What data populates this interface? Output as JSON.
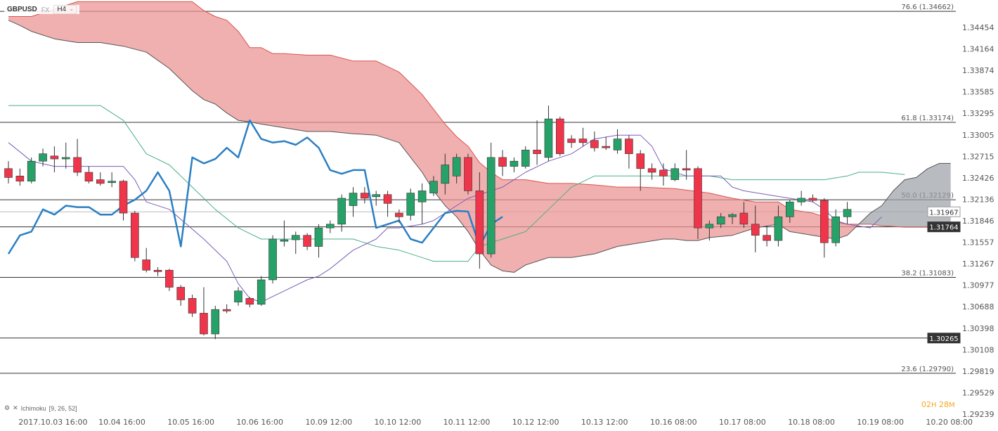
{
  "header": {
    "symbol": "GBPUSD",
    "market": "FX",
    "timeframe": "H4",
    "timeframe_icon": "chevron-down-icon"
  },
  "indicator": {
    "icon": "settings-icon",
    "name": "Ichimoku",
    "params": "[9, 26, 52]"
  },
  "countdown": {
    "hours": "02",
    "hour_unit": "H",
    "minutes": "28",
    "minute_unit": "M"
  },
  "chart_data": {
    "type": "candlestick",
    "ylim": [
      1.29239,
      1.34662
    ],
    "y_ticks": [
      "1.34454",
      "1.34164",
      "1.33874",
      "1.33585",
      "1.33295",
      "1.33005",
      "1.32715",
      "1.32426",
      "1.32136",
      "1.31846",
      "1.31557",
      "1.31267",
      "1.30977",
      "1.30688",
      "1.30398",
      "1.30108",
      "1.29819",
      "1.29529",
      "1.29239"
    ],
    "x_ticks": [
      {
        "label": "2017.10.03  16:00",
        "index": 4
      },
      {
        "label": "10.04  16:00",
        "index": 10
      },
      {
        "label": "10.05  16:00",
        "index": 16
      },
      {
        "label": "10.06  16:00",
        "index": 22
      },
      {
        "label": "10.09  12:00",
        "index": 28
      },
      {
        "label": "10.10  12:00",
        "index": 34
      },
      {
        "label": "10.11  12:00",
        "index": 40
      },
      {
        "label": "10.12  12:00",
        "index": 46
      },
      {
        "label": "10.13  12:00",
        "index": 52
      },
      {
        "label": "10.16  08:00",
        "index": 58
      },
      {
        "label": "10.17  08:00",
        "index": 64
      },
      {
        "label": "10.18  08:00",
        "index": 70
      },
      {
        "label": "10.19  08:00",
        "index": 76
      },
      {
        "label": "10.20  08:00",
        "index": 82
      }
    ],
    "candles": [
      [
        1.3255,
        1.3265,
        1.3235,
        1.3243
      ],
      [
        1.3245,
        1.3255,
        1.3232,
        1.3238
      ],
      [
        1.3238,
        1.327,
        1.3235,
        1.3265
      ],
      [
        1.3265,
        1.3282,
        1.3258,
        1.3275
      ],
      [
        1.3272,
        1.3285,
        1.325,
        1.3268
      ],
      [
        1.3268,
        1.329,
        1.3255,
        1.327
      ],
      [
        1.327,
        1.3295,
        1.3245,
        1.325
      ],
      [
        1.325,
        1.3258,
        1.3235,
        1.3238
      ],
      [
        1.324,
        1.325,
        1.3232,
        1.3235
      ],
      [
        1.3236,
        1.325,
        1.323,
        1.3238
      ],
      [
        1.3238,
        1.324,
        1.3185,
        1.3195
      ],
      [
        1.3195,
        1.3198,
        1.313,
        1.3135
      ],
      [
        1.3132,
        1.3148,
        1.3115,
        1.3118
      ],
      [
        1.3118,
        1.3122,
        1.311,
        1.3116
      ],
      [
        1.3118,
        1.312,
        1.309,
        1.3095
      ],
      [
        1.3095,
        1.3098,
        1.307,
        1.3078
      ],
      [
        1.308,
        1.3085,
        1.3055,
        1.306
      ],
      [
        1.306,
        1.3095,
        1.303,
        1.3032
      ],
      [
        1.3032,
        1.307,
        1.3025,
        1.3065
      ],
      [
        1.3065,
        1.3072,
        1.306,
        1.3063
      ],
      [
        1.3075,
        1.3095,
        1.307,
        1.309
      ],
      [
        1.308,
        1.3082,
        1.3068,
        1.3072
      ],
      [
        1.3072,
        1.311,
        1.307,
        1.3105
      ],
      [
        1.3105,
        1.3165,
        1.31,
        1.316
      ],
      [
        1.3157,
        1.3185,
        1.315,
        1.3159
      ],
      [
        1.3159,
        1.317,
        1.314,
        1.3165
      ],
      [
        1.3165,
        1.3168,
        1.3145,
        1.315
      ],
      [
        1.315,
        1.318,
        1.3135,
        1.3175
      ],
      [
        1.3175,
        1.3185,
        1.3168,
        1.318
      ],
      [
        1.318,
        1.322,
        1.317,
        1.3215
      ],
      [
        1.3205,
        1.323,
        1.319,
        1.3222
      ],
      [
        1.3222,
        1.323,
        1.3208,
        1.3215
      ],
      [
        1.3217,
        1.3225,
        1.3205,
        1.322
      ],
      [
        1.322,
        1.3225,
        1.319,
        1.3208
      ],
      [
        1.3195,
        1.32,
        1.3182,
        1.319
      ],
      [
        1.3192,
        1.3228,
        1.3185,
        1.3222
      ],
      [
        1.321,
        1.3235,
        1.318,
        1.3225
      ],
      [
        1.3222,
        1.3245,
        1.3218,
        1.3238
      ],
      [
        1.3235,
        1.3275,
        1.322,
        1.326
      ],
      [
        1.3245,
        1.3275,
        1.3235,
        1.327
      ],
      [
        1.327,
        1.3275,
        1.322,
        1.3225
      ],
      [
        1.3225,
        1.325,
        1.312,
        1.314
      ],
      [
        1.314,
        1.329,
        1.3135,
        1.327
      ],
      [
        1.327,
        1.328,
        1.3245,
        1.3258
      ],
      [
        1.3258,
        1.327,
        1.325,
        1.3265
      ],
      [
        1.3258,
        1.3285,
        1.3255,
        1.328
      ],
      [
        1.328,
        1.332,
        1.326,
        1.3275
      ],
      [
        1.327,
        1.334,
        1.3265,
        1.3322
      ],
      [
        1.3322,
        1.3325,
        1.3272,
        1.3275
      ],
      [
        1.3295,
        1.33,
        1.3283,
        1.329
      ],
      [
        1.3295,
        1.331,
        1.3285,
        1.329
      ],
      [
        1.3293,
        1.3305,
        1.3278,
        1.3283
      ],
      [
        1.3285,
        1.3298,
        1.328,
        1.3283
      ],
      [
        1.328,
        1.3308,
        1.3275,
        1.3295
      ],
      [
        1.3295,
        1.33,
        1.3255,
        1.3275
      ],
      [
        1.3275,
        1.328,
        1.3225,
        1.3255
      ],
      [
        1.3255,
        1.3262,
        1.324,
        1.325
      ],
      [
        1.3253,
        1.3262,
        1.3232,
        1.3245
      ],
      [
        1.324,
        1.3262,
        1.3238,
        1.3255
      ],
      [
        1.3255,
        1.328,
        1.324,
        1.3253
      ],
      [
        1.3255,
        1.3258,
        1.316,
        1.3175
      ],
      [
        1.3175,
        1.3185,
        1.3158,
        1.318
      ],
      [
        1.318,
        1.3195,
        1.3175,
        1.319
      ],
      [
        1.319,
        1.3195,
        1.318,
        1.3193
      ],
      [
        1.3195,
        1.321,
        1.3175,
        1.318
      ],
      [
        1.318,
        1.3205,
        1.3142,
        1.3165
      ],
      [
        1.3165,
        1.3178,
        1.315,
        1.3158
      ],
      [
        1.3158,
        1.3205,
        1.315,
        1.319
      ],
      [
        1.319,
        1.3213,
        1.3182,
        1.321
      ],
      [
        1.321,
        1.3225,
        1.3205,
        1.3215
      ],
      [
        1.3215,
        1.322,
        1.321,
        1.3212
      ],
      [
        1.3212,
        1.3215,
        1.3135,
        1.3155
      ],
      [
        1.3155,
        1.32,
        1.315,
        1.319
      ],
      [
        1.319,
        1.321,
        1.318,
        1.32
      ]
    ],
    "tenkan": [
      [
        0,
        1.329
      ],
      [
        2,
        1.3265
      ],
      [
        4,
        1.3258
      ],
      [
        8,
        1.3258
      ],
      [
        10,
        1.3258
      ],
      [
        11,
        1.324
      ],
      [
        12,
        1.321
      ],
      [
        14,
        1.32
      ],
      [
        17,
        1.316
      ],
      [
        19,
        1.313
      ],
      [
        20,
        1.31
      ],
      [
        21,
        1.308
      ],
      [
        22,
        1.3075
      ],
      [
        24,
        1.309
      ],
      [
        26,
        1.3105
      ],
      [
        27,
        1.311
      ],
      [
        28,
        1.312
      ],
      [
        30,
        1.3145
      ],
      [
        32,
        1.316
      ],
      [
        33,
        1.3175
      ],
      [
        34,
        1.3175
      ],
      [
        36,
        1.318
      ],
      [
        37,
        1.3185
      ],
      [
        38,
        1.3195
      ],
      [
        39,
        1.3205
      ],
      [
        40,
        1.3215
      ],
      [
        42,
        1.3225
      ],
      [
        43,
        1.323
      ],
      [
        44,
        1.324
      ],
      [
        45,
        1.325
      ],
      [
        47,
        1.3265
      ],
      [
        49,
        1.3275
      ],
      [
        51,
        1.3295
      ],
      [
        53,
        1.33
      ],
      [
        55,
        1.33
      ],
      [
        56,
        1.3285
      ],
      [
        57,
        1.3255
      ],
      [
        59,
        1.3245
      ],
      [
        62,
        1.3245
      ],
      [
        63,
        1.323
      ],
      [
        64,
        1.3225
      ],
      [
        66,
        1.322
      ],
      [
        68,
        1.3215
      ],
      [
        70,
        1.321
      ],
      [
        71,
        1.32
      ],
      [
        72,
        1.3185
      ],
      [
        73,
        1.318
      ],
      [
        75,
        1.3175
      ],
      [
        76,
        1.319
      ]
    ],
    "kijun": [
      [
        0,
        1.334
      ],
      [
        8,
        1.334
      ],
      [
        10,
        1.332
      ],
      [
        12,
        1.3275
      ],
      [
        14,
        1.326
      ],
      [
        16,
        1.323
      ],
      [
        18,
        1.32
      ],
      [
        20,
        1.3175
      ],
      [
        22,
        1.316
      ],
      [
        23,
        1.316
      ],
      [
        30,
        1.316
      ],
      [
        32,
        1.315
      ],
      [
        34,
        1.3145
      ],
      [
        36,
        1.3135
      ],
      [
        37,
        1.313
      ],
      [
        38,
        1.313
      ],
      [
        40,
        1.313
      ],
      [
        41,
        1.315
      ],
      [
        45,
        1.317
      ],
      [
        47,
        1.32
      ],
      [
        49,
        1.323
      ],
      [
        51,
        1.3245
      ],
      [
        61,
        1.3245
      ],
      [
        63,
        1.324
      ],
      [
        67,
        1.324
      ],
      [
        71,
        1.324
      ],
      [
        73,
        1.3245
      ],
      [
        74,
        1.325
      ],
      [
        76,
        1.325
      ],
      [
        78,
        1.3247
      ]
    ],
    "chikou": [
      [
        0,
        1.314
      ],
      [
        1,
        1.3165
      ],
      [
        2,
        1.317
      ],
      [
        3,
        1.32
      ],
      [
        4,
        1.3193
      ],
      [
        5,
        1.3205
      ],
      [
        6,
        1.3203
      ],
      [
        7,
        1.3203
      ],
      [
        8,
        1.3193
      ],
      [
        9,
        1.3193
      ],
      [
        10,
        1.3205
      ],
      [
        11,
        1.3213
      ],
      [
        12,
        1.3225
      ],
      [
        13,
        1.325
      ],
      [
        14,
        1.3225
      ],
      [
        15,
        1.315
      ],
      [
        16,
        1.327
      ],
      [
        17,
        1.3262
      ],
      [
        18,
        1.3268
      ],
      [
        19,
        1.3283
      ],
      [
        20,
        1.327
      ],
      [
        21,
        1.332
      ],
      [
        22,
        1.3295
      ],
      [
        23,
        1.329
      ],
      [
        24,
        1.3292
      ],
      [
        25,
        1.3287
      ],
      [
        26,
        1.3297
      ],
      [
        27,
        1.3283
      ],
      [
        28,
        1.3253
      ],
      [
        29,
        1.3248
      ],
      [
        30,
        1.3253
      ],
      [
        31,
        1.3253
      ],
      [
        32,
        1.3175
      ],
      [
        33,
        1.318
      ],
      [
        34,
        1.3185
      ],
      [
        35,
        1.316
      ],
      [
        36,
        1.3155
      ],
      [
        37,
        1.3175
      ],
      [
        38,
        1.3195
      ],
      [
        39,
        1.3198
      ],
      [
        40,
        1.3197
      ],
      [
        41,
        1.315
      ],
      [
        42,
        1.318
      ],
      [
        43,
        1.319
      ]
    ],
    "senkou_a": [
      [
        0,
        1.346
      ],
      [
        1,
        1.346
      ],
      [
        2,
        1.346
      ],
      [
        4,
        1.347
      ],
      [
        6,
        1.348
      ],
      [
        8,
        1.348
      ],
      [
        10,
        1.348
      ],
      [
        12,
        1.348
      ],
      [
        14,
        1.348
      ],
      [
        16,
        1.348
      ],
      [
        17,
        1.3468
      ],
      [
        18,
        1.346
      ],
      [
        19,
        1.3455
      ],
      [
        20,
        1.344
      ],
      [
        21,
        1.3418
      ],
      [
        22,
        1.3418
      ],
      [
        23,
        1.341
      ],
      [
        24,
        1.341
      ],
      [
        26,
        1.3408
      ],
      [
        28,
        1.3408
      ],
      [
        30,
        1.34
      ],
      [
        32,
        1.34
      ],
      [
        34,
        1.3385
      ],
      [
        36,
        1.3355
      ],
      [
        37,
        1.3335
      ],
      [
        38,
        1.3315
      ],
      [
        39,
        1.3298
      ],
      [
        40,
        1.3285
      ],
      [
        41,
        1.3263
      ],
      [
        42,
        1.325
      ],
      [
        43,
        1.324
      ],
      [
        45,
        1.324
      ],
      [
        47,
        1.3235
      ],
      [
        49,
        1.3235
      ],
      [
        51,
        1.3233
      ],
      [
        53,
        1.323
      ],
      [
        55,
        1.323
      ],
      [
        58,
        1.3228
      ],
      [
        61,
        1.3222
      ],
      [
        63,
        1.3215
      ],
      [
        65,
        1.321
      ],
      [
        67,
        1.321
      ],
      [
        68,
        1.32
      ],
      [
        70,
        1.3195
      ],
      [
        71,
        1.319
      ],
      [
        72,
        1.3183
      ],
      [
        73,
        1.318
      ],
      [
        74,
        1.318
      ],
      [
        75,
        1.318
      ],
      [
        76,
        1.3178
      ],
      [
        78,
        1.3176
      ]
    ],
    "senkou_b": [
      [
        0,
        1.3455
      ],
      [
        1,
        1.3448
      ],
      [
        2,
        1.344
      ],
      [
        4,
        1.343
      ],
      [
        6,
        1.3425
      ],
      [
        8,
        1.3425
      ],
      [
        10,
        1.342
      ],
      [
        12,
        1.3412
      ],
      [
        14,
        1.339
      ],
      [
        16,
        1.336
      ],
      [
        17,
        1.3348
      ],
      [
        18,
        1.3342
      ],
      [
        19,
        1.333
      ],
      [
        20,
        1.332
      ],
      [
        21,
        1.3318
      ],
      [
        22,
        1.3315
      ],
      [
        24,
        1.331
      ],
      [
        26,
        1.3305
      ],
      [
        28,
        1.3305
      ],
      [
        30,
        1.3302
      ],
      [
        32,
        1.33
      ],
      [
        34,
        1.329
      ],
      [
        36,
        1.325
      ],
      [
        37,
        1.3225
      ],
      [
        38,
        1.3205
      ],
      [
        39,
        1.319
      ],
      [
        40,
        1.317
      ],
      [
        41,
        1.3145
      ],
      [
        42,
        1.3125
      ],
      [
        43,
        1.3117
      ],
      [
        44,
        1.3115
      ],
      [
        45,
        1.3125
      ],
      [
        47,
        1.3135
      ],
      [
        49,
        1.3135
      ],
      [
        51,
        1.314
      ],
      [
        53,
        1.315
      ],
      [
        55,
        1.3155
      ],
      [
        57,
        1.316
      ],
      [
        58,
        1.316
      ],
      [
        59,
        1.3158
      ],
      [
        60,
        1.3158
      ],
      [
        61,
        1.3162
      ],
      [
        63,
        1.3165
      ],
      [
        65,
        1.3175
      ],
      [
        67,
        1.318
      ],
      [
        68,
        1.317
      ],
      [
        70,
        1.3165
      ],
      [
        72,
        1.316
      ],
      [
        73,
        1.3165
      ],
      [
        74,
        1.318
      ],
      [
        75,
        1.3195
      ],
      [
        76,
        1.3205
      ],
      [
        77,
        1.3225
      ],
      [
        78,
        1.324
      ],
      [
        79,
        1.3243
      ],
      [
        80,
        1.3255
      ],
      [
        81,
        1.3262
      ],
      [
        82,
        1.3262
      ]
    ],
    "fib_levels": [
      {
        "label": "76.6 (1.34662)",
        "value": 1.3467
      },
      {
        "label": "61.8 (1.33174)",
        "value": 1.33174
      },
      {
        "label": "50.0 (1.32129)",
        "value": 1.32129
      },
      {
        "label": "38.2 (1.31083)",
        "value": 1.31083
      },
      {
        "label": "23.6 (1.29790)",
        "value": 1.2979
      }
    ],
    "price_tags": [
      {
        "label": "1.31967",
        "value": 1.31967,
        "bg": "#ffffff",
        "fg": "#333333"
      },
      {
        "label": "1.31764",
        "value": 1.31764,
        "bg": "#333333",
        "fg": "#ffffff"
      },
      {
        "label": "1.30265",
        "value": 1.30265,
        "bg": "#333333",
        "fg": "#ffffff"
      }
    ],
    "colors": {
      "bull": "#26a269",
      "bear": "#f0354a",
      "tenkan": "#7b5fb8",
      "kijun": "#4caf87",
      "chikou": "#2a7fc4",
      "cloud_bear": "#eb9191",
      "cloud_bull": "#9aa0a6"
    }
  }
}
